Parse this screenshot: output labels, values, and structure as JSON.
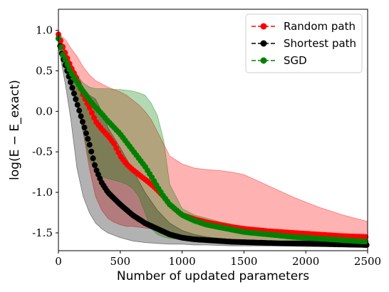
{
  "chart_data": {
    "type": "line",
    "xlabel": "Number of updated parameters",
    "ylabel": "log(E − E_exact)",
    "xlim": [
      0,
      2500
    ],
    "ylim": [
      -1.72,
      1.26
    ],
    "x_ticks": [
      0,
      500,
      1000,
      1500,
      2000,
      2500
    ],
    "x_tick_labels": [
      "0",
      "500",
      "1000",
      "1500",
      "2000",
      "2500"
    ],
    "y_ticks": [
      1.0,
      0.5,
      0.0,
      -0.5,
      -1.0,
      -1.5
    ],
    "y_tick_labels": [
      "1.0",
      "0.5",
      "0.0",
      "-0.5",
      "-1.0",
      "-1.5"
    ],
    "grid": false,
    "legend_position": "top-right",
    "series": [
      {
        "name": "Random path",
        "color": "#ff0000",
        "line_style": "dashed",
        "marker": "circle",
        "x": [
          0,
          30,
          60,
          100,
          150,
          200,
          250,
          300,
          350,
          400,
          450,
          500,
          550,
          600,
          650,
          700,
          750,
          800,
          850,
          900,
          1000,
          1100,
          1200,
          1300,
          1400,
          1500,
          1700,
          1900,
          2100,
          2300,
          2500
        ],
        "y": [
          0.95,
          0.82,
          0.7,
          0.55,
          0.4,
          0.2,
          0.05,
          -0.12,
          -0.22,
          -0.3,
          -0.4,
          -0.55,
          -0.65,
          -0.72,
          -0.78,
          -0.84,
          -0.9,
          -0.97,
          -1.05,
          -1.15,
          -1.28,
          -1.33,
          -1.37,
          -1.4,
          -1.43,
          -1.45,
          -1.48,
          -1.5,
          -1.52,
          -1.54,
          -1.55
        ],
        "lower": [
          0.85,
          0.7,
          0.55,
          0.35,
          0.1,
          -0.25,
          -0.7,
          -1.05,
          -1.22,
          -1.32,
          -1.37,
          -1.4,
          -1.42,
          -1.42,
          -1.43,
          -1.44,
          -1.45,
          -1.46,
          -1.48,
          -1.52,
          -1.58,
          -1.6,
          -1.62,
          -1.62,
          -1.63,
          -1.63,
          -1.64,
          -1.64,
          -1.64,
          -1.65,
          -1.65
        ],
        "upper": [
          1.0,
          0.92,
          0.88,
          0.78,
          0.68,
          0.55,
          0.45,
          0.38,
          0.34,
          0.3,
          0.27,
          0.24,
          0.2,
          0.14,
          0.08,
          0.0,
          -0.1,
          -0.25,
          -0.4,
          -0.55,
          -0.65,
          -0.7,
          -0.72,
          -0.73,
          -0.75,
          -0.78,
          -0.92,
          -1.06,
          -1.18,
          -1.28,
          -1.36
        ]
      },
      {
        "name": "Shortest path",
        "color": "#000000",
        "line_style": "dashed",
        "marker": "circle",
        "x": [
          0,
          30,
          60,
          100,
          150,
          200,
          250,
          300,
          350,
          400,
          500,
          600,
          700,
          800,
          900,
          1000,
          1100,
          1200,
          1400,
          1600,
          1800,
          2000,
          2200,
          2500
        ],
        "y": [
          0.9,
          0.7,
          0.55,
          0.35,
          0.1,
          -0.15,
          -0.4,
          -0.7,
          -0.88,
          -1.0,
          -1.15,
          -1.28,
          -1.38,
          -1.45,
          -1.52,
          -1.56,
          -1.58,
          -1.59,
          -1.61,
          -1.62,
          -1.63,
          -1.63,
          -1.64,
          -1.65
        ],
        "lower": [
          0.8,
          0.55,
          0.3,
          -0.1,
          -0.7,
          -1.05,
          -1.25,
          -1.38,
          -1.45,
          -1.5,
          -1.56,
          -1.6,
          -1.62,
          -1.63,
          -1.64,
          -1.64,
          -1.65,
          -1.65,
          -1.66,
          -1.66,
          -1.66,
          -1.67,
          -1.67,
          -1.67
        ],
        "upper": [
          0.95,
          0.85,
          0.75,
          0.6,
          0.45,
          0.3,
          0.2,
          0.15,
          0.0,
          -0.2,
          -0.45,
          -0.72,
          -1.0,
          -1.22,
          -1.38,
          -1.47,
          -1.52,
          -1.55,
          -1.58,
          -1.6,
          -1.61,
          -1.62,
          -1.63,
          -1.64
        ]
      },
      {
        "name": "SGD",
        "color": "#008000",
        "line_style": "dashed",
        "marker": "circle",
        "x": [
          0,
          30,
          60,
          100,
          150,
          200,
          250,
          300,
          350,
          400,
          450,
          500,
          550,
          600,
          650,
          700,
          750,
          800,
          850,
          900,
          1000,
          1100,
          1200,
          1300,
          1400,
          1500,
          1700,
          1900,
          2100,
          2300,
          2500
        ],
        "y": [
          0.9,
          0.72,
          0.62,
          0.48,
          0.36,
          0.24,
          0.14,
          0.05,
          -0.03,
          -0.12,
          -0.2,
          -0.28,
          -0.38,
          -0.48,
          -0.58,
          -0.68,
          -0.8,
          -0.93,
          -1.05,
          -1.15,
          -1.28,
          -1.35,
          -1.4,
          -1.43,
          -1.46,
          -1.49,
          -1.52,
          -1.55,
          -1.57,
          -1.59,
          -1.61
        ],
        "lower": [
          0.85,
          0.62,
          0.48,
          0.28,
          0.05,
          -0.25,
          -0.6,
          -0.75,
          -0.8,
          -0.83,
          -0.85,
          -0.87,
          -0.9,
          -0.95,
          -1.05,
          -1.25,
          -1.45,
          -1.52,
          -1.55,
          -1.57,
          -1.58,
          -1.59,
          -1.59,
          -1.6,
          -1.6,
          -1.61,
          -1.61,
          -1.62,
          -1.62,
          -1.62,
          -1.63
        ],
        "upper": [
          0.95,
          0.82,
          0.72,
          0.6,
          0.45,
          0.35,
          0.3,
          0.28,
          0.28,
          0.28,
          0.27,
          0.27,
          0.26,
          0.25,
          0.23,
          0.2,
          0.1,
          -0.05,
          -0.35,
          -0.9,
          -1.2,
          -1.28,
          -1.32,
          -1.36,
          -1.39,
          -1.42,
          -1.46,
          -1.49,
          -1.52,
          -1.55,
          -1.58
        ]
      }
    ]
  }
}
